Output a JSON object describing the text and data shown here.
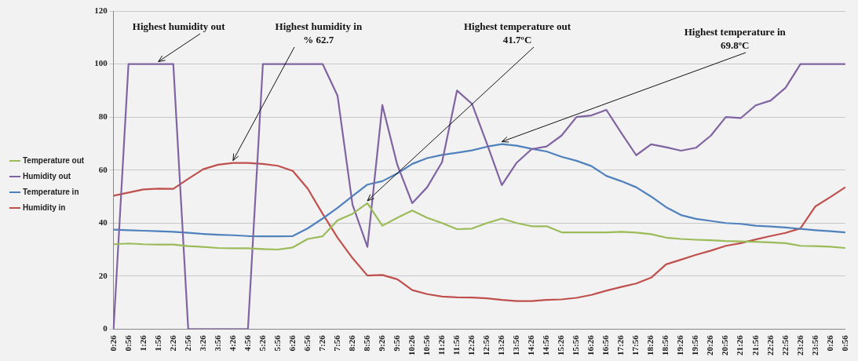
{
  "chart_data": {
    "type": "line",
    "categories": [
      "0:26",
      "0:56",
      "1:26",
      "1:56",
      "2:26",
      "2:56",
      "3:26",
      "3:56",
      "4:26",
      "4:56",
      "5:26",
      "5:56",
      "6:26",
      "6:56",
      "7:26",
      "7:56",
      "8:26",
      "8:56",
      "9:26",
      "9:56",
      "10:26",
      "10:56",
      "11:26",
      "11:56",
      "12:26",
      "12:56",
      "13:26",
      "13:56",
      "14:26",
      "14:56",
      "15:26",
      "15:56",
      "16:26",
      "16:56",
      "17:26",
      "17:56",
      "18:26",
      "18:56",
      "19:26",
      "19:56",
      "20:26",
      "20:56",
      "21:26",
      "21:56",
      "22:26",
      "22:56",
      "23:26",
      "23:56",
      "0:26",
      "0:56"
    ],
    "series": [
      {
        "name": "Temperature out",
        "color": "#9bbb59",
        "values": [
          32,
          32.3,
          32,
          31.9,
          31.9,
          31.3,
          31,
          30.6,
          30.5,
          30.5,
          30.2,
          30,
          30.8,
          34,
          35,
          41,
          43.5,
          47.5,
          39,
          42,
          44.7,
          42,
          40,
          37.7,
          37.9,
          40,
          41.7,
          40,
          38.8,
          38.8,
          36.5,
          36.5,
          36.5,
          36.5,
          36.7,
          36.4,
          35.8,
          34.5,
          34,
          33.7,
          33.5,
          33.2,
          33.1,
          32.9,
          32.7,
          32.4,
          31.4,
          31.3,
          31.1,
          30.6
        ]
      },
      {
        "name": "Humidity out",
        "color": "#8064a2",
        "values": [
          0,
          100,
          100,
          100,
          100,
          0,
          0,
          0,
          0,
          0,
          100,
          100,
          100,
          100,
          100,
          88,
          47,
          31,
          84.5,
          62,
          47.5,
          53.5,
          63,
          90,
          85,
          70,
          54.3,
          62.8,
          67.9,
          68.9,
          73,
          80,
          80.6,
          82.7,
          74,
          65.6,
          69.7,
          68.6,
          67.3,
          68.4,
          73,
          80,
          79.6,
          84.4,
          86.2,
          91,
          100,
          100,
          100,
          100
        ]
      },
      {
        "name": "Temperature in",
        "color": "#4f81bd",
        "values": [
          37.5,
          37.3,
          37.1,
          36.9,
          36.7,
          36.3,
          35.9,
          35.6,
          35.4,
          35.1,
          35,
          35,
          35.1,
          38,
          41.7,
          45.7,
          50.2,
          54.5,
          55.8,
          58.7,
          62.3,
          64.5,
          65.7,
          66.5,
          67.4,
          68.8,
          69.8,
          69.2,
          68,
          67,
          65,
          63.5,
          61.5,
          57.8,
          55.8,
          53.5,
          50,
          46,
          43,
          41.6,
          40.8,
          40,
          39.7,
          39,
          38.7,
          38.3,
          37.8,
          37.3,
          36.9,
          36.5
        ]
      },
      {
        "name": "Humidity in",
        "color": "#c0504d",
        "values": [
          50.3,
          51.5,
          52.7,
          53,
          52.9,
          56.7,
          60.3,
          62,
          62.7,
          62.7,
          62.3,
          61.6,
          59.7,
          53,
          43.5,
          34.5,
          26.8,
          20.2,
          20.4,
          18.8,
          14.7,
          13.2,
          12.3,
          12,
          11.9,
          11.6,
          11,
          10.6,
          10.6,
          11,
          11.2,
          11.8,
          12.9,
          14.5,
          15.9,
          17.2,
          19.4,
          24.4,
          26.2,
          28,
          29.6,
          31.4,
          32.4,
          33.8,
          35.1,
          36.3,
          38,
          46.3,
          49.8,
          53.5
        ]
      }
    ],
    "ylim": [
      0,
      120
    ],
    "yticks": [
      0,
      20,
      40,
      60,
      80,
      100,
      120
    ],
    "grid": "y",
    "legend": "left",
    "annotations": [
      {
        "text": "Highest humidity out",
        "x": "1:56",
        "y": 100
      },
      {
        "text": "Highest humidity in\n% 62.7",
        "x": "4:26",
        "y": 62.7
      },
      {
        "text": "Highest temperature out\n41.7ºC",
        "x": "8:56",
        "y": 47.5
      },
      {
        "text": "Highest temperature in\n69.8ºC",
        "x": "13:26",
        "y": 69.8
      }
    ]
  }
}
